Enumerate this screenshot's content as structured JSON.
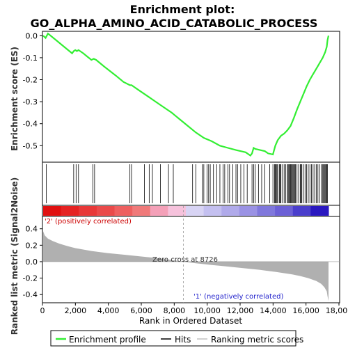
{
  "chart_data": {
    "type": "line",
    "title_line1": "Enrichment plot:",
    "title_line2": "GO_ALPHA_AMINO_ACID_CATABOLIC_PROCESS",
    "ylabel_top": "Enrichment score (ES)",
    "ylabel_bottom": "Ranked list metric (Signal2Noise)",
    "xlabel": "Rank in Ordered Dataset",
    "xlim": [
      0,
      18000
    ],
    "x_ticks": [
      0,
      2000,
      4000,
      6000,
      8000,
      10000,
      12000,
      14000,
      16000,
      18000
    ],
    "x_tick_labels": [
      "0",
      "2,000",
      "4,000",
      "6,000",
      "8,000",
      "10,000",
      "12,000",
      "14,000",
      "16,000",
      "18,000"
    ],
    "es_ylim": [
      -0.575,
      0.02
    ],
    "es_ticks": [
      0.0,
      -0.1,
      -0.2,
      -0.3,
      -0.4,
      -0.5
    ],
    "es_tick_labels": [
      "0.0",
      "-0.1",
      "-0.2",
      "-0.3",
      "-0.4",
      "-0.5"
    ],
    "metric_ylim": [
      -0.5,
      0.55
    ],
    "metric_ticks": [
      0.4,
      0.2,
      0.0,
      -0.2,
      -0.4
    ],
    "metric_tick_labels": [
      "0.4",
      "0.2",
      "0.0",
      "-0.2",
      "-0.4"
    ],
    "enrichment_profile": {
      "x": [
        0,
        150,
        300,
        800,
        1300,
        1800,
        1900,
        2000,
        2100,
        2200,
        2500,
        3000,
        3150,
        3300,
        3800,
        4500,
        5000,
        5400,
        5500,
        6000,
        6500,
        7000,
        7500,
        8000,
        8500,
        9000,
        9500,
        10000,
        10500,
        11000,
        11500,
        12000,
        12300,
        12600,
        12900,
        13000,
        13100,
        13200,
        13500,
        13800,
        14000,
        14300,
        14450,
        14600,
        14800,
        15000,
        15200,
        15400,
        15600,
        15800,
        16000,
        16200,
        16400,
        16600,
        16800,
        17000,
        17200,
        17400,
        17550,
        17650,
        17700,
        17760
      ],
      "y": [
        0.0,
        -0.01,
        0.01,
        -0.02,
        -0.05,
        -0.08,
        -0.07,
        -0.065,
        -0.07,
        -0.065,
        -0.08,
        -0.11,
        -0.105,
        -0.11,
        -0.14,
        -0.18,
        -0.21,
        -0.225,
        -0.225,
        -0.25,
        -0.275,
        -0.3,
        -0.325,
        -0.35,
        -0.38,
        -0.41,
        -0.44,
        -0.465,
        -0.48,
        -0.5,
        -0.51,
        -0.52,
        -0.525,
        -0.53,
        -0.545,
        -0.535,
        -0.51,
        -0.515,
        -0.52,
        -0.525,
        -0.535,
        -0.54,
        -0.5,
        -0.475,
        -0.455,
        -0.445,
        -0.43,
        -0.41,
        -0.375,
        -0.335,
        -0.3,
        -0.265,
        -0.23,
        -0.2,
        -0.175,
        -0.15,
        -0.125,
        -0.1,
        -0.075,
        -0.05,
        -0.02,
        0.0
      ]
    },
    "hits": [
      200,
      1900,
      2050,
      2200,
      3100,
      3200,
      5400,
      5500,
      6300,
      6600,
      6800,
      7300,
      7800,
      8100,
      9300,
      9500,
      9900,
      10000,
      10200,
      10300,
      10400,
      10600,
      10800,
      11000,
      11200,
      11300,
      11500,
      11600,
      11800,
      12000,
      12100,
      12300,
      12500,
      12700,
      13000,
      13100,
      13200,
      13400,
      13600,
      13800,
      14100,
      14300,
      14400,
      14450,
      14500,
      14550,
      14600,
      14700,
      14750,
      14800,
      14900,
      15000,
      15100,
      15200,
      15250,
      15300,
      15350,
      15400,
      15450,
      15500,
      15550,
      15600,
      15650,
      15700,
      15800,
      15900,
      16000,
      16050,
      16100,
      16200,
      16300,
      16400,
      16500,
      16600,
      16700,
      16800,
      16900,
      17000,
      17100,
      17200,
      17300,
      17400,
      17450,
      17500,
      17550,
      17600,
      17650,
      17700
    ],
    "ranked_metric": {
      "x": [
        0,
        100,
        300,
        600,
        1000,
        1500,
        2000,
        3000,
        4000,
        5000,
        6000,
        7000,
        8000,
        8726,
        9500,
        10500,
        11500,
        12500,
        13500,
        14500,
        15500,
        16000,
        16500,
        17000,
        17300,
        17500,
        17650,
        17700,
        17760
      ],
      "y": [
        0.37,
        0.32,
        0.28,
        0.25,
        0.22,
        0.19,
        0.165,
        0.13,
        0.105,
        0.085,
        0.065,
        0.045,
        0.02,
        0.0,
        -0.02,
        -0.04,
        -0.06,
        -0.08,
        -0.1,
        -0.125,
        -0.155,
        -0.175,
        -0.2,
        -0.235,
        -0.27,
        -0.31,
        -0.36,
        -0.42,
        -0.48
      ]
    },
    "zero_cross": 8726,
    "zero_cross_label": "Zero cross at 8726",
    "positive_label": "'2' (positively correlated)",
    "negative_label": "'1' (negatively correlated)",
    "colors": {
      "profile": "#33ee33",
      "hits": "#000000",
      "metric_fill": "#b0b0b0",
      "positive_text": "#cc0000",
      "negative_text": "#2222cc"
    },
    "legend": [
      {
        "label": "Enrichment profile",
        "kind": "line",
        "color": "#33ee33"
      },
      {
        "label": "Hits",
        "kind": "line",
        "color": "#000000"
      },
      {
        "label": "Ranking metric scores",
        "kind": "line",
        "color": "#c0c0c0"
      }
    ],
    "legend_position": "bottom"
  }
}
